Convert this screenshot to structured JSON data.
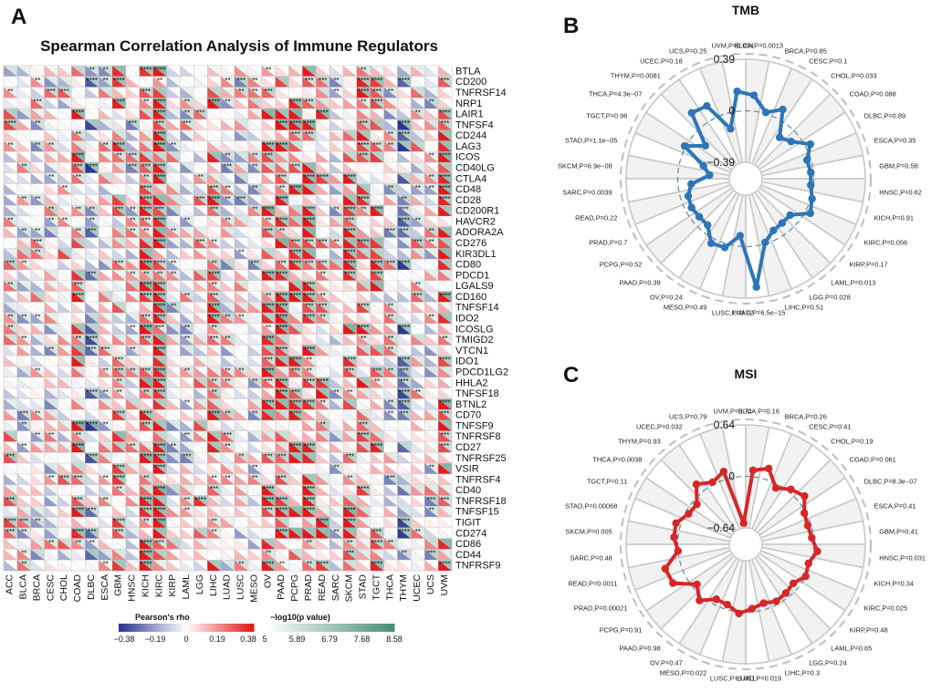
{
  "chart_data": [
    {
      "type": "heatmap",
      "panel_label": "A",
      "title": "Spearman Correlation Analysis of Immune Regulators",
      "cancers": [
        "ACC",
        "BLCA",
        "BRCA",
        "CESC",
        "CHOL",
        "COAD",
        "DLBC",
        "ESCA",
        "GBM",
        "HNSC",
        "KICH",
        "KIRC",
        "KIRP",
        "LAML",
        "LGG",
        "LIHC",
        "LUAD",
        "LUSC",
        "MESO",
        "OV",
        "PAAD",
        "PCPG",
        "PRAD",
        "READ",
        "SARC",
        "SKCM",
        "STAD",
        "TGCT",
        "THCA",
        "THYM",
        "UCEC",
        "UCS",
        "UVM"
      ],
      "genes": [
        "BTLA",
        "CD200",
        "TNFRSF14",
        "NRP1",
        "LAIR1",
        "TNFSF4",
        "CD244",
        "LAG3",
        "ICOS",
        "CD40LG",
        "CTLA4",
        "CD48",
        "CD28",
        "CD200R1",
        "HAVCR2",
        "ADORA2A",
        "CD276",
        "KIR3DL1",
        "CD80",
        "PDCD1",
        "LGALS9",
        "CD160",
        "TNFSF14",
        "IDO2",
        "ICOSLG",
        "TMIGD2",
        "VTCN1",
        "IDO1",
        "PDCD1LG2",
        "HHLA2",
        "TNFSF18",
        "BTNL2",
        "CD70",
        "TNFSF9",
        "TNFRSF8",
        "CD27",
        "TNFRSF25",
        "VSIR",
        "TNFRSF4",
        "CD40",
        "TNFRSF18",
        "TNFSF15",
        "TIGIT",
        "CD274",
        "CD86",
        "CD44",
        "TNFRSF9"
      ],
      "rho_colorbar": {
        "title": "Pearson's rho",
        "ticks": [
          "−0.38",
          "−0.19",
          "0",
          "0.19",
          "0.38"
        ],
        "colors": [
          "#2b3990",
          "#ffffff",
          "#e31a1c"
        ]
      },
      "p_colorbar": {
        "title": "−log10(p value)",
        "ticks": [
          "5",
          "5.89",
          "6.79",
          "7.68",
          "8.58"
        ],
        "colors": [
          "#ffffff",
          "#4a8f7c"
        ]
      }
    },
    {
      "type": "radar",
      "panel_label": "B",
      "title": "TMB",
      "rlim": [
        -0.39,
        0.39
      ],
      "rticks": [
        "0.39",
        "0",
        "−0.39"
      ],
      "color": "#2e75b6",
      "categories": [
        "BLCA",
        "BRCA",
        "CESC",
        "CHOL",
        "COAD",
        "DLBC",
        "ESCA",
        "GBM",
        "HNSC",
        "KICH",
        "KIRC",
        "KIRP",
        "LAML",
        "LGG",
        "LIHC",
        "LUAD",
        "LUSC",
        "MESO",
        "OV",
        "PAAD",
        "PCPG",
        "PRAD",
        "READ",
        "SARC",
        "SKCM",
        "STAD",
        "TGCT",
        "THCA",
        "THYM",
        "UCEC",
        "UCS",
        "UVM"
      ],
      "labels": [
        "BLCA,P=0.0013",
        "BRCA,P=0.85",
        "CESC,P=0.1",
        "CHOL,P=0.033",
        "COAD,P=0.088",
        "DLBC,P=0.89",
        "ESCA,P=0.35",
        "GBM,P=0.58",
        "HNSC,P=0.62",
        "KICH,P=0.91",
        "KIRC,P=0.056",
        "KIRP,P=0.17",
        "LAML,P=0.013",
        "LGG,P=0.028",
        "LIHC,P=0.51",
        "LUAD,P=6.5e−15",
        "LUSC,P=0.12",
        "MESO,P=0.49",
        "OV,P=0.24",
        "PAAD,P=0.39",
        "PCPG,P=0.52",
        "PRAD,P=0.7",
        "READ,P=0.22",
        "SARC,P=0.0039",
        "SKCM,P=6.9e−08",
        "STAD,P=1.1e−05",
        "TGCT,P=0.96",
        "THCA,P=4.3e−07",
        "THYM,P=0.0081",
        "UCEC,P=0.18",
        "UCS,P=0.25",
        "UVM,P=0.054"
      ],
      "values": [
        0.12,
        0.01,
        0.08,
        -0.11,
        -0.07,
        0.04,
        -0.03,
        -0.02,
        -0.02,
        0.01,
        0.04,
        -0.08,
        -0.08,
        -0.07,
        -0.01,
        0.31,
        -0.08,
        0.03,
        0.04,
        -0.06,
        -0.06,
        -0.05,
        -0.06,
        -0.1,
        -0.24,
        -0.18,
        0.01,
        -0.12,
        0.13,
        0.11,
        -0.12,
        0.15
      ]
    },
    {
      "type": "radar",
      "panel_label": "C",
      "title": "MSI",
      "rlim": [
        -0.64,
        0.64
      ],
      "rticks": [
        "0.64",
        "0",
        "−0.64"
      ],
      "color": "#d62728",
      "categories": [
        "BLCA",
        "BRCA",
        "CESC",
        "CHOL",
        "COAD",
        "DLBC",
        "ESCA",
        "GBM",
        "HNSC",
        "KICH",
        "KIRC",
        "KIRP",
        "LAML",
        "LGG",
        "LIHC",
        "LUAD",
        "LUSC",
        "MESO",
        "OV",
        "PAAD",
        "PCPG",
        "PRAD",
        "READ",
        "SARC",
        "SKCM",
        "STAD",
        "TGCT",
        "THCA",
        "THYM",
        "UCEC",
        "UCS",
        "UVM"
      ],
      "labels": [
        "BLCA,P=0.16",
        "BRCA,P=0.26",
        "CESC,P=0.41",
        "CHOL,P=0.19",
        "COAD,P=0.061",
        "DLBC,P=8.3e−07",
        "ESCA,P=0.41",
        "GBM,P=0.41",
        "HNSC,P=0.031",
        "KICH,P=0.34",
        "KIRC,P=0.025",
        "KIRP,P=0.48",
        "LAML,P=0.65",
        "LGG,P=0.24",
        "LIHC,P=0.3",
        "LUAD,P=0.019",
        "LUSC,P=0.051",
        "MESO,P=0.022",
        "OV,P=0.47",
        "PAAD,P=0.98",
        "PCPG,P=0.91",
        "PRAD,P=0.00021",
        "READ,P=0.0011",
        "SARC,P=0.48",
        "SKCM,P=0.005",
        "STAD,P=0.00068",
        "TGCT,P=0.11",
        "THCA,P=0.0038",
        "THYM,P=0.93",
        "UCEC,P=0.032",
        "UCS,P=0.79",
        "UVM,P=0.74"
      ],
      "values": [
        0.08,
        0.14,
        -0.05,
        0.04,
        0.1,
        -0.02,
        -0.04,
        -0.02,
        0.05,
        -0.03,
        0.0,
        -0.08,
        -0.06,
        -0.04,
        -0.08,
        -0.04,
        0.02,
        -0.06,
        -0.07,
        0.06,
        -0.06,
        0.18,
        0.2,
        0.0,
        0.05,
        0.06,
        -0.04,
        -0.06,
        0.12,
        0.03,
        0.1,
        -0.58
      ]
    }
  ]
}
